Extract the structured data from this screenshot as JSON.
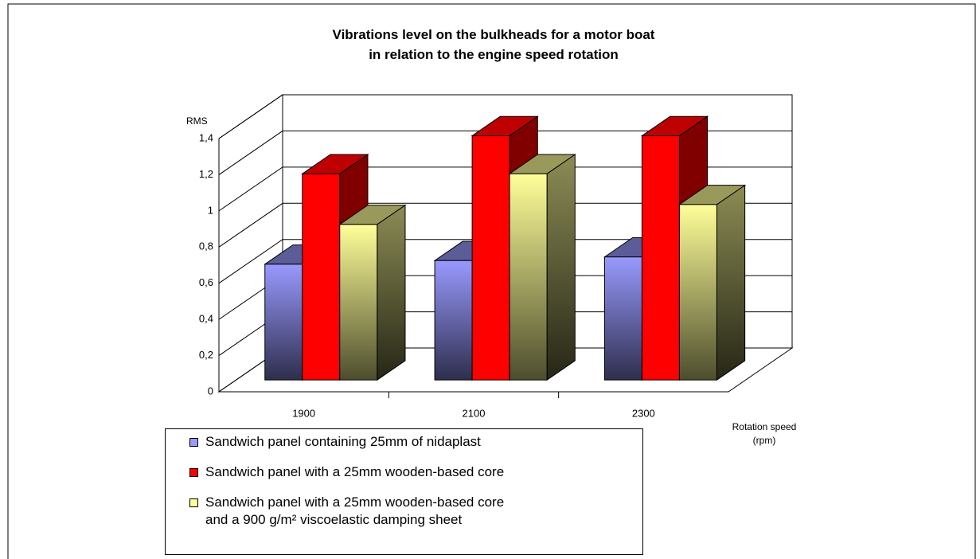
{
  "chart_data": {
    "type": "bar3d",
    "title": "Vibrations level on the bulkheads for a motor boat\nin relation to the engine speed rotation",
    "y_label": "RMS",
    "x_label": "Rotation speed\n(rpm)",
    "categories": [
      "1900",
      "2100",
      "2300"
    ],
    "series": [
      {
        "name": "Sandwich panel containing 25mm of nidaplast",
        "color": "#9999ff",
        "values": [
          0.64,
          0.66,
          0.68
        ]
      },
      {
        "name": "Sandwich panel with a 25mm wooden-based core",
        "color": "#ff0000",
        "values": [
          1.14,
          1.35,
          1.35
        ]
      },
      {
        "name": "Sandwich panel with a 25mm wooden-based core\nand a  900 g/m² viscoelastic damping sheet",
        "color": "#ffff99",
        "values": [
          0.86,
          1.14,
          0.97
        ]
      }
    ],
    "ylim": [
      0,
      1.4
    ],
    "yticks": [
      0,
      {
        "value": 0.2,
        "label": "0,2"
      },
      {
        "value": 0.4,
        "label": "0,4"
      },
      {
        "value": 0.6,
        "label": "0,6"
      },
      {
        "value": 0.8,
        "label": "0,8"
      },
      1,
      {
        "value": 1.2,
        "label": "1,2"
      },
      {
        "value": 1.4,
        "label": "1,4"
      }
    ],
    "grid": true
  }
}
